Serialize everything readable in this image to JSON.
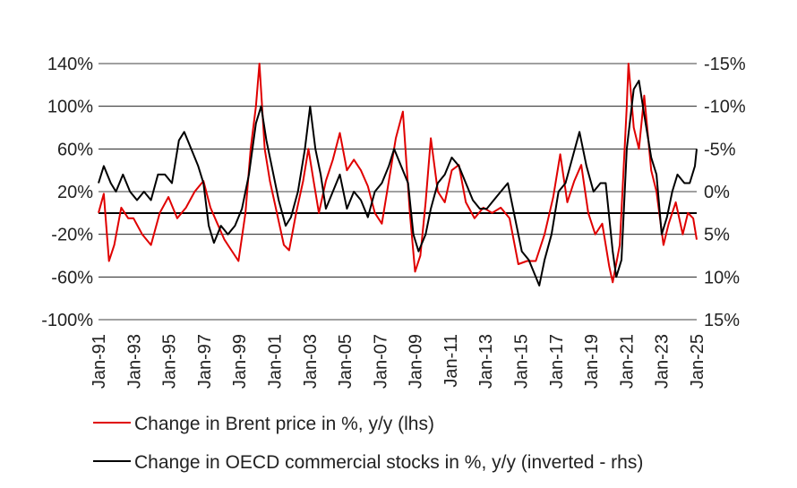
{
  "chart_data": {
    "type": "line",
    "title": "",
    "xlabel": "",
    "ylabel_left": "",
    "ylabel_right": "",
    "y_left_ticks": [
      "140%",
      "100%",
      "60%",
      "20%",
      "-20%",
      "-60%",
      "-100%"
    ],
    "y_left_range": [
      -100,
      140
    ],
    "y_right_ticks": [
      "-15%",
      "-10%",
      "-5%",
      "0%",
      "5%",
      "10%",
      "15%"
    ],
    "y_right_range_inverted": [
      -15,
      15
    ],
    "x_ticks": [
      "Jan-91",
      "Jan-93",
      "Jan-95",
      "Jan-97",
      "Jan-99",
      "Jan-01",
      "Jan-03",
      "Jan-05",
      "Jan-07",
      "Jan-09",
      "Jan-11",
      "Jan-13",
      "Jan-15",
      "Jan-17",
      "Jan-19",
      "Jan-21",
      "Jan-23",
      "Jan-25"
    ],
    "x_range": [
      1991.0,
      2025.2
    ],
    "legend_position": "bottom-left",
    "series": [
      {
        "name": "Change in Brent price in %, y/y (lhs)",
        "axis": "left",
        "color": "#e00000",
        "points": [
          [
            1991.0,
            0
          ],
          [
            1991.3,
            18
          ],
          [
            1991.6,
            -45
          ],
          [
            1991.9,
            -30
          ],
          [
            1992.3,
            5
          ],
          [
            1992.7,
            -5
          ],
          [
            1993.0,
            -5
          ],
          [
            1993.5,
            -20
          ],
          [
            1994.0,
            -30
          ],
          [
            1994.5,
            0
          ],
          [
            1995.0,
            15
          ],
          [
            1995.5,
            -5
          ],
          [
            1996.0,
            5
          ],
          [
            1996.5,
            20
          ],
          [
            1997.0,
            30
          ],
          [
            1997.4,
            5
          ],
          [
            1997.8,
            -10
          ],
          [
            1998.2,
            -25
          ],
          [
            1998.6,
            -35
          ],
          [
            1999.0,
            -45
          ],
          [
            1999.4,
            0
          ],
          [
            1999.7,
            60
          ],
          [
            2000.0,
            100
          ],
          [
            2000.2,
            140
          ],
          [
            2000.5,
            60
          ],
          [
            2000.8,
            30
          ],
          [
            2001.2,
            0
          ],
          [
            2001.6,
            -30
          ],
          [
            2001.9,
            -35
          ],
          [
            2002.3,
            0
          ],
          [
            2002.7,
            30
          ],
          [
            2003.0,
            60
          ],
          [
            2003.3,
            30
          ],
          [
            2003.6,
            0
          ],
          [
            2004.0,
            30
          ],
          [
            2004.4,
            50
          ],
          [
            2004.8,
            75
          ],
          [
            2005.2,
            40
          ],
          [
            2005.6,
            50
          ],
          [
            2006.0,
            40
          ],
          [
            2006.4,
            25
          ],
          [
            2006.8,
            0
          ],
          [
            2007.2,
            -10
          ],
          [
            2007.6,
            30
          ],
          [
            2008.0,
            70
          ],
          [
            2008.4,
            95
          ],
          [
            2008.8,
            0
          ],
          [
            2009.1,
            -55
          ],
          [
            2009.4,
            -40
          ],
          [
            2009.7,
            10
          ],
          [
            2010.0,
            70
          ],
          [
            2010.4,
            20
          ],
          [
            2010.8,
            10
          ],
          [
            2011.2,
            40
          ],
          [
            2011.6,
            45
          ],
          [
            2012.0,
            10
          ],
          [
            2012.5,
            -5
          ],
          [
            2013.0,
            5
          ],
          [
            2013.5,
            0
          ],
          [
            2014.0,
            5
          ],
          [
            2014.5,
            -5
          ],
          [
            2015.0,
            -48
          ],
          [
            2015.5,
            -45
          ],
          [
            2016.0,
            -45
          ],
          [
            2016.5,
            -20
          ],
          [
            2017.0,
            15
          ],
          [
            2017.4,
            55
          ],
          [
            2017.8,
            10
          ],
          [
            2018.2,
            30
          ],
          [
            2018.6,
            45
          ],
          [
            2019.0,
            0
          ],
          [
            2019.4,
            -20
          ],
          [
            2019.8,
            -10
          ],
          [
            2020.2,
            -50
          ],
          [
            2020.4,
            -65
          ],
          [
            2020.8,
            -30
          ],
          [
            2021.2,
            100
          ],
          [
            2021.3,
            140
          ],
          [
            2021.6,
            80
          ],
          [
            2021.9,
            60
          ],
          [
            2022.2,
            110
          ],
          [
            2022.6,
            40
          ],
          [
            2022.9,
            20
          ],
          [
            2023.3,
            -30
          ],
          [
            2023.6,
            -10
          ],
          [
            2024.0,
            10
          ],
          [
            2024.4,
            -20
          ],
          [
            2024.7,
            0
          ],
          [
            2025.0,
            -5
          ],
          [
            2025.2,
            -25
          ]
        ]
      },
      {
        "name": "Change in OECD commercial stocks in %, y/y (inverted - rhs)",
        "axis": "right",
        "color": "#000000",
        "points": [
          [
            1991.0,
            -1
          ],
          [
            1991.3,
            -3
          ],
          [
            1991.7,
            -1
          ],
          [
            1992.0,
            0
          ],
          [
            1992.4,
            -2
          ],
          [
            1992.8,
            0
          ],
          [
            1993.2,
            1
          ],
          [
            1993.6,
            0
          ],
          [
            1994.0,
            1
          ],
          [
            1994.4,
            -2
          ],
          [
            1994.8,
            -2
          ],
          [
            1995.2,
            -1
          ],
          [
            1995.6,
            -6
          ],
          [
            1995.9,
            -7
          ],
          [
            1996.3,
            -5
          ],
          [
            1996.7,
            -3
          ],
          [
            1997.0,
            -1
          ],
          [
            1997.3,
            4
          ],
          [
            1997.6,
            6
          ],
          [
            1998.0,
            4
          ],
          [
            1998.4,
            5
          ],
          [
            1998.8,
            4
          ],
          [
            1999.2,
            2
          ],
          [
            1999.6,
            -2
          ],
          [
            2000.0,
            -8
          ],
          [
            2000.3,
            -10
          ],
          [
            2000.6,
            -6
          ],
          [
            2000.9,
            -3
          ],
          [
            2001.3,
            1
          ],
          [
            2001.7,
            4
          ],
          [
            2002.0,
            3
          ],
          [
            2002.4,
            0
          ],
          [
            2002.8,
            -5
          ],
          [
            2003.1,
            -10
          ],
          [
            2003.4,
            -5
          ],
          [
            2003.7,
            -2
          ],
          [
            2004.0,
            2
          ],
          [
            2004.4,
            0
          ],
          [
            2004.8,
            -2
          ],
          [
            2005.2,
            2
          ],
          [
            2005.6,
            0
          ],
          [
            2006.0,
            1
          ],
          [
            2006.4,
            3
          ],
          [
            2006.8,
            0
          ],
          [
            2007.2,
            -1
          ],
          [
            2007.6,
            -3
          ],
          [
            2007.9,
            -5
          ],
          [
            2008.3,
            -3
          ],
          [
            2008.7,
            -1
          ],
          [
            2009.0,
            5
          ],
          [
            2009.3,
            7
          ],
          [
            2009.7,
            5
          ],
          [
            2010.0,
            2
          ],
          [
            2010.4,
            -1
          ],
          [
            2010.8,
            -2
          ],
          [
            2011.2,
            -4
          ],
          [
            2011.6,
            -3
          ],
          [
            2012.0,
            -1
          ],
          [
            2012.4,
            1
          ],
          [
            2012.8,
            2
          ],
          [
            2013.2,
            2
          ],
          [
            2013.6,
            1
          ],
          [
            2014.0,
            0
          ],
          [
            2014.4,
            -1
          ],
          [
            2014.8,
            3
          ],
          [
            2015.2,
            7
          ],
          [
            2015.6,
            8
          ],
          [
            2016.0,
            10
          ],
          [
            2016.2,
            11
          ],
          [
            2016.5,
            8
          ],
          [
            2016.9,
            5
          ],
          [
            2017.3,
            0
          ],
          [
            2017.7,
            -1
          ],
          [
            2018.1,
            -4
          ],
          [
            2018.5,
            -7
          ],
          [
            2018.9,
            -3
          ],
          [
            2019.3,
            0
          ],
          [
            2019.7,
            -1
          ],
          [
            2020.0,
            -1
          ],
          [
            2020.4,
            7
          ],
          [
            2020.6,
            10
          ],
          [
            2020.9,
            8
          ],
          [
            2021.2,
            -5
          ],
          [
            2021.6,
            -12
          ],
          [
            2021.9,
            -13
          ],
          [
            2022.2,
            -9
          ],
          [
            2022.6,
            -4
          ],
          [
            2022.9,
            -2
          ],
          [
            2023.2,
            5
          ],
          [
            2023.5,
            3
          ],
          [
            2023.8,
            0
          ],
          [
            2024.1,
            -2
          ],
          [
            2024.5,
            -1
          ],
          [
            2024.8,
            -1
          ],
          [
            2025.1,
            -3
          ],
          [
            2025.2,
            -5
          ]
        ]
      }
    ]
  }
}
